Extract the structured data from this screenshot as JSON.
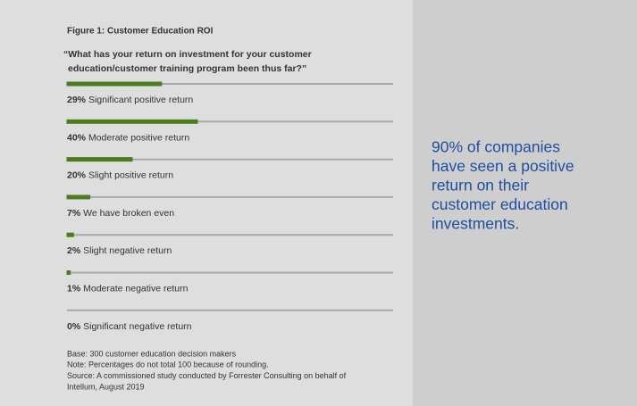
{
  "chart_data": {
    "type": "hbar",
    "title": "Figure 1: Customer Education ROI",
    "subtitle": [
      "“What has your return on investment for your customer",
      "education/customer training program been thus far?”"
    ],
    "categories": [
      "Significant positive return",
      "Moderate positive return",
      "Slight positive return",
      "We have broken even",
      "Slight negative return",
      "Moderate negative return",
      "Significant negative return"
    ],
    "values": [
      29,
      40,
      20,
      7,
      2,
      1,
      0
    ],
    "value_labels": [
      "29%",
      "40%",
      "20%",
      "7%",
      "2%",
      "1%",
      "0%"
    ],
    "color": "#4b7d1f",
    "xlim": [
      0,
      100
    ],
    "notes": [
      "Base: 300 customer education decision makers",
      "Note: Percentages do not total 100 because of rounding.",
      "Source: A commissioned study conducted by Forrester Consulting on behalf of",
      "Intellum, August 2019"
    ],
    "annotations": [
      "90% of companies",
      "have seen a positive",
      "return on their",
      "customer education",
      "investments."
    ]
  }
}
